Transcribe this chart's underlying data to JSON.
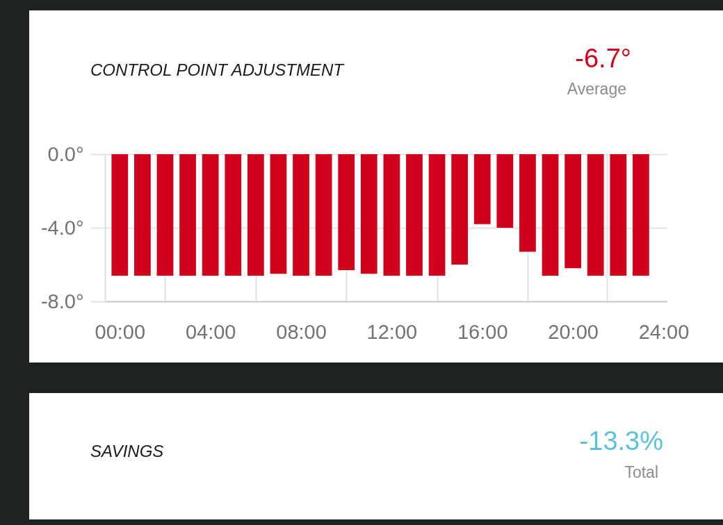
{
  "chart_data": [
    {
      "type": "bar",
      "title": "CONTROL POINT ADJUSTMENT",
      "annotations": [
        "-6.7°",
        "Average"
      ],
      "x": [
        0,
        1,
        2,
        3,
        4,
        5,
        6,
        7,
        8,
        9,
        10,
        11,
        12,
        13,
        14,
        15,
        16,
        17,
        18,
        19,
        20,
        21,
        22,
        23
      ],
      "values": [
        -6.6,
        -6.6,
        -6.6,
        -6.6,
        -6.6,
        -6.6,
        -6.6,
        -6.5,
        -6.6,
        -6.6,
        -6.3,
        -6.5,
        -6.6,
        -6.6,
        -6.6,
        -6.0,
        -3.8,
        -4.0,
        -5.3,
        -6.6,
        -6.2,
        -6.6,
        -6.6,
        -6.6
      ],
      "color": "#d0021b",
      "xlim": [
        -0.5,
        24
      ],
      "xticks": [
        {
          "value": 0,
          "label": "00:00"
        },
        {
          "value": 2,
          "label": null
        },
        {
          "value": 4,
          "label": "04:00"
        },
        {
          "value": 6,
          "label": null
        },
        {
          "value": 8,
          "label": "08:00"
        },
        {
          "value": 10,
          "label": null
        },
        {
          "value": 12,
          "label": "12:00"
        },
        {
          "value": 14,
          "label": null
        },
        {
          "value": 16,
          "label": "16:00"
        },
        {
          "value": 18,
          "label": null
        },
        {
          "value": 20,
          "label": "20:00"
        },
        {
          "value": 21.5,
          "label": null
        },
        {
          "value": 24,
          "label": "24:00"
        }
      ],
      "ylim": [
        -8,
        0
      ],
      "yticks": [
        {
          "value": 0,
          "label": "0.0°"
        },
        {
          "value": -4,
          "label": "-4.0°"
        },
        {
          "value": -8,
          "label": "-8.0°"
        }
      ],
      "grid": true
    },
    {
      "type": "other",
      "title": "SAVINGS",
      "annotations": [
        "-13.3%",
        "Total"
      ]
    }
  ]
}
